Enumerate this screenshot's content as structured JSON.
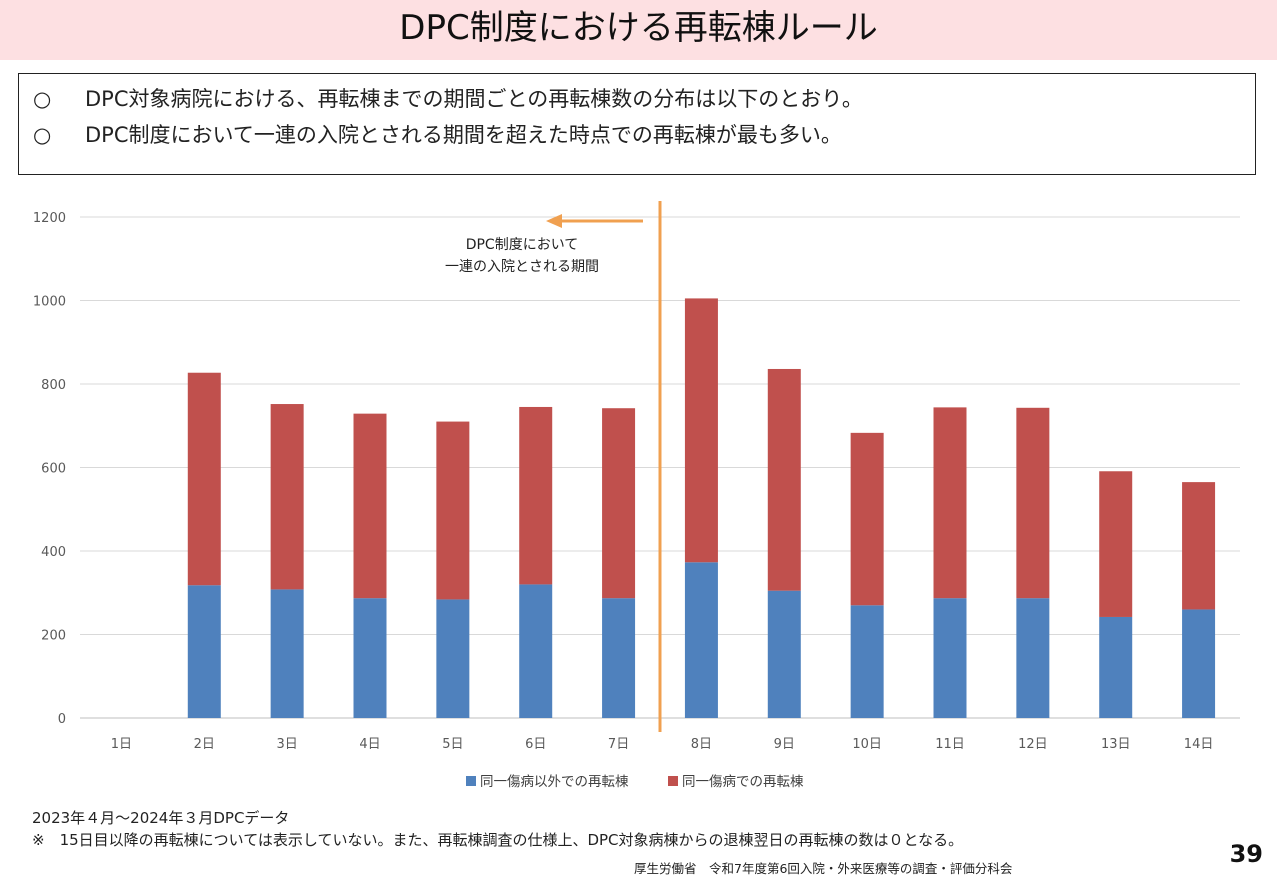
{
  "title": "DPC制度における再転棟ルール",
  "summary": {
    "bullets": [
      {
        "mark": "○",
        "text": "DPC対象病院における、再転棟までの期間ごとの再転棟数の分布は以下のとおり。"
      },
      {
        "mark": "○",
        "text": "DPC制度において一連の入院とされる期間を超えた時点での再転棟が最も多い。"
      }
    ]
  },
  "chart_data": {
    "type": "bar",
    "stacked": true,
    "categories": [
      "1日",
      "2日",
      "3日",
      "4日",
      "5日",
      "6日",
      "7日",
      "8日",
      "9日",
      "10日",
      "11日",
      "12日",
      "13日",
      "14日"
    ],
    "series": [
      {
        "name": "同一傷病以外での再転棟",
        "color": "#4f81bd",
        "values": [
          0,
          318,
          308,
          287,
          284,
          320,
          287,
          373,
          305,
          270,
          287,
          287,
          242,
          260
        ]
      },
      {
        "name": "同一傷病での再転棟",
        "color": "#c0504d",
        "values": [
          0,
          509,
          444,
          442,
          426,
          425,
          455,
          632,
          531,
          413,
          457,
          456,
          349,
          305
        ]
      }
    ],
    "ylim": [
      0,
      1200
    ],
    "yticks": [
      0,
      200,
      400,
      600,
      800,
      1000,
      1200
    ],
    "grid": true,
    "legend_position": "bottom",
    "annotation": {
      "lines": [
        "DPC制度において",
        "一連の入院とされる期間"
      ],
      "divider_after_category": "7日",
      "color": "#f0a050"
    }
  },
  "footnotes": [
    "2023年４月～2024年３月DPCデータ",
    "※　15日目以降の再転棟については表示していない。また、再転棟調査の仕様上、DPC対象病棟からの退棟翌日の再転棟の数は０となる。"
  ],
  "source": "厚生労働省　令和7年度第6回入院・外来医療等の調査・評価分科会",
  "page_number": "39"
}
